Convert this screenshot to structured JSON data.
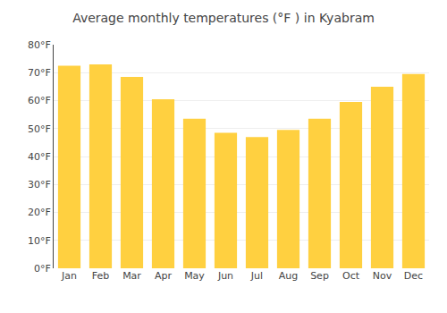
{
  "chart_data": {
    "type": "bar",
    "title": "Average monthly temperatures (°F ) in Kyabram",
    "categories": [
      "Jan",
      "Feb",
      "Mar",
      "Apr",
      "May",
      "Jun",
      "Jul",
      "Aug",
      "Sep",
      "Oct",
      "Nov",
      "Dec"
    ],
    "values": [
      72.5,
      73.0,
      68.5,
      60.5,
      53.5,
      48.5,
      47.0,
      49.5,
      53.5,
      59.5,
      65.0,
      69.5
    ],
    "color": "#FFD040",
    "ylim": [
      0,
      80
    ],
    "yticks": [
      {
        "value": 0,
        "label": "0°F"
      },
      {
        "value": 10,
        "label": "10°F"
      },
      {
        "value": 20,
        "label": "20°F"
      },
      {
        "value": 30,
        "label": "30°F"
      },
      {
        "value": 40,
        "label": "40°F"
      },
      {
        "value": 50,
        "label": "50°F"
      },
      {
        "value": 60,
        "label": "60°F"
      },
      {
        "value": 70,
        "label": "70°F"
      },
      {
        "value": 80,
        "label": "80°F"
      }
    ],
    "grid": true
  }
}
